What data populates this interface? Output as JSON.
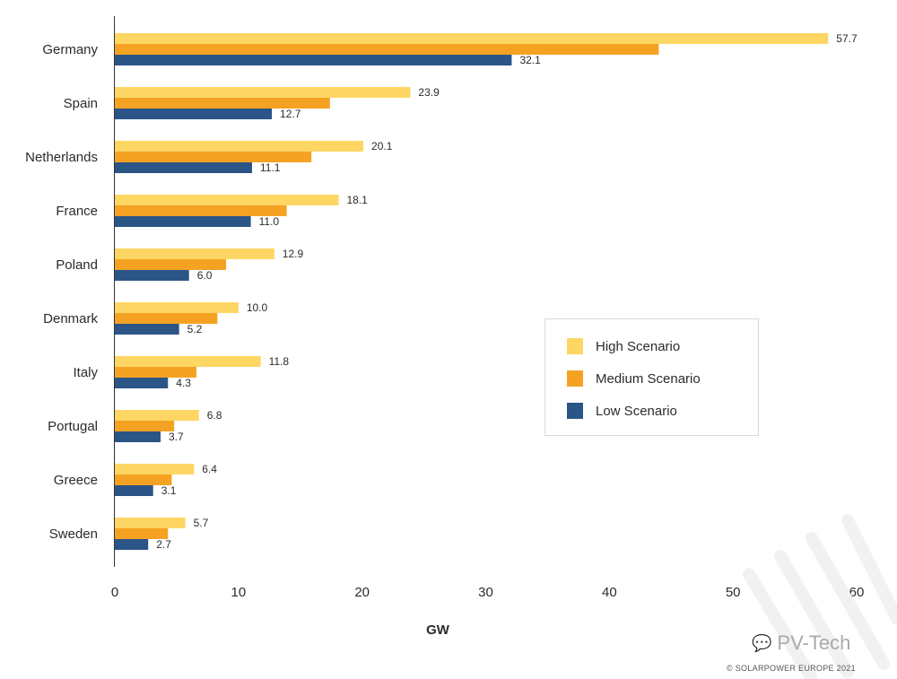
{
  "chart_data": {
    "type": "bar",
    "orientation": "horizontal",
    "categories": [
      "Germany",
      "Spain",
      "Netherlands",
      "France",
      "Poland",
      "Denmark",
      "Italy",
      "Portugal",
      "Greece",
      "Sweden"
    ],
    "series": [
      {
        "name": "High Scenario",
        "color": "#FDD663",
        "values": [
          57.7,
          23.9,
          20.1,
          18.1,
          12.9,
          10.0,
          11.8,
          6.8,
          6.4,
          5.7
        ],
        "labels": [
          "57.7",
          "23.9",
          "20.1",
          "18.1",
          "12.9",
          "10.0",
          "11.8",
          "6.8",
          "6.4",
          "5.7"
        ]
      },
      {
        "name": "Medium Scenario",
        "color": "#F5A223",
        "values": [
          44.0,
          17.4,
          15.9,
          13.9,
          9.0,
          8.3,
          6.6,
          4.8,
          4.6,
          4.3
        ]
      },
      {
        "name": "Low Scenario",
        "color": "#2C5587",
        "values": [
          32.1,
          12.7,
          11.1,
          11.0,
          6.0,
          5.2,
          4.3,
          3.7,
          3.1,
          2.7
        ],
        "labels": [
          "32.1",
          "12.7",
          "11.1",
          "11.0",
          "6.0",
          "5.2",
          "4.3",
          "3.7",
          "3.1",
          "2.7"
        ]
      }
    ],
    "xlabel": "GW",
    "xlim": [
      0,
      60
    ],
    "xticks": [
      "0",
      "10",
      "20",
      "30",
      "40",
      "50",
      "60"
    ],
    "grid": false,
    "legend_position": "right-center"
  },
  "watermark": {
    "text": "PV-Tech",
    "icon": "wechat-icon"
  },
  "copyright": "© SOLARPOWER EUROPE 2021",
  "colors": {
    "text": "#2b2b2b",
    "axis": "#333333"
  }
}
